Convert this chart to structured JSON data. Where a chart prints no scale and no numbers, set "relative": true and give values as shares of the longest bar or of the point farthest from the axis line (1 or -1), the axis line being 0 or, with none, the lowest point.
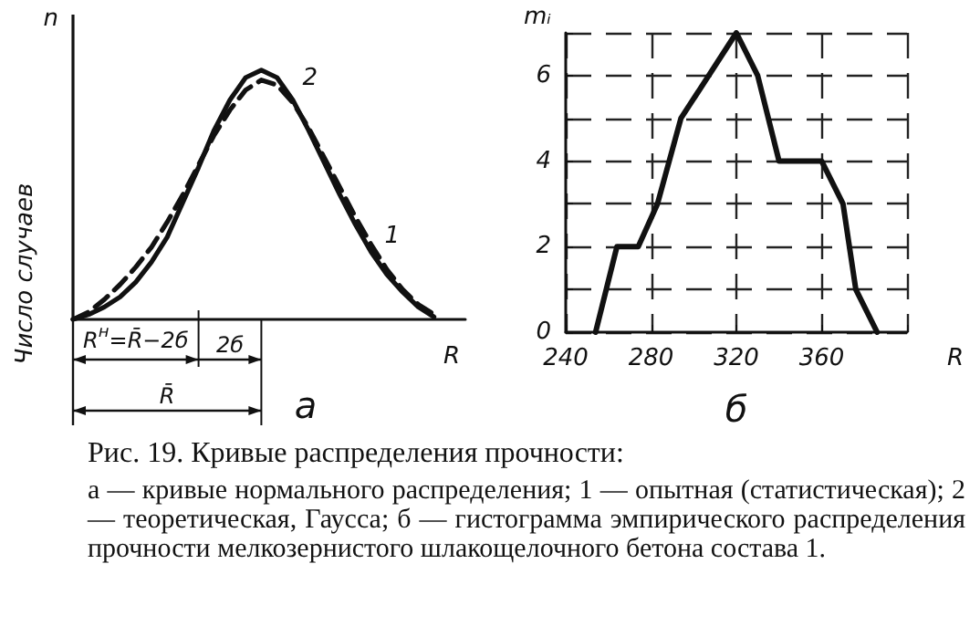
{
  "chart_data": [
    {
      "type": "line",
      "title": "а",
      "ylabel": "Число случаев",
      "y2label": "n",
      "xlabel": "R",
      "relative": true,
      "legend": false,
      "categories": [
        null,
        null,
        null,
        null,
        null,
        null,
        null,
        null,
        null,
        null,
        null,
        null,
        null,
        null,
        null,
        null,
        null,
        null,
        null,
        null,
        null,
        null,
        null,
        null,
        null,
        null
      ],
      "series": [
        {
          "name": "1",
          "color": "#111111",
          "line_style": "solid",
          "values": [
            0,
            0.02,
            0.05,
            0.09,
            0.15,
            0.23,
            0.33,
            0.47,
            0.61,
            0.76,
            0.88,
            0.97,
            1.0,
            0.97,
            0.88,
            0.76,
            0.63,
            0.5,
            0.38,
            0.27,
            0.18,
            0.11,
            0.05,
            0.01,
            null,
            null
          ]
        },
        {
          "name": "2",
          "color": "#111111",
          "line_style": "dashed",
          "values": [
            0,
            0.03,
            0.08,
            0.14,
            0.21,
            0.29,
            0.39,
            0.5,
            0.62,
            0.74,
            0.84,
            0.92,
            0.96,
            0.94,
            0.87,
            0.77,
            0.65,
            0.53,
            0.41,
            0.3,
            0.2,
            0.12,
            0.06,
            0.02,
            null,
            null
          ]
        }
      ],
      "annotations": [
        "R$^{н}$=R̄−2б",
        "2б",
        "R̄",
        "Рис. 19. Кривые распределения прочности:",
        "а — кривые нормального распределения; 1 — опытная (статистическая); 2 — теоретическая, Гаусса; б — гистограмма эмпирического распределения прочности мелкозернистого шлакощелочного бетона состава 1."
      ]
    },
    {
      "type": "line",
      "title": "б",
      "xlabel": "R",
      "ylabel": "mᵢ",
      "grid": true,
      "legend": false,
      "marker": "none",
      "x": [
        254,
        264,
        274,
        283,
        294,
        320,
        330,
        340,
        360,
        370,
        376,
        386
      ],
      "values": [
        0,
        2,
        2,
        3,
        5,
        7,
        6,
        4,
        4,
        3,
        1,
        0
      ],
      "color": "#111111",
      "xlim": [
        240,
        400
      ],
      "xticks": [
        240,
        280,
        320,
        360,
        {
          "value": 400,
          "label": null
        }
      ],
      "ylim": [
        0,
        7
      ],
      "yticks": [
        0,
        {
          "value": 1,
          "label": null
        },
        2,
        {
          "value": 3,
          "label": null
        },
        4,
        {
          "value": 5,
          "label": null
        },
        6,
        {
          "value": 7,
          "label": null
        }
      ]
    }
  ]
}
